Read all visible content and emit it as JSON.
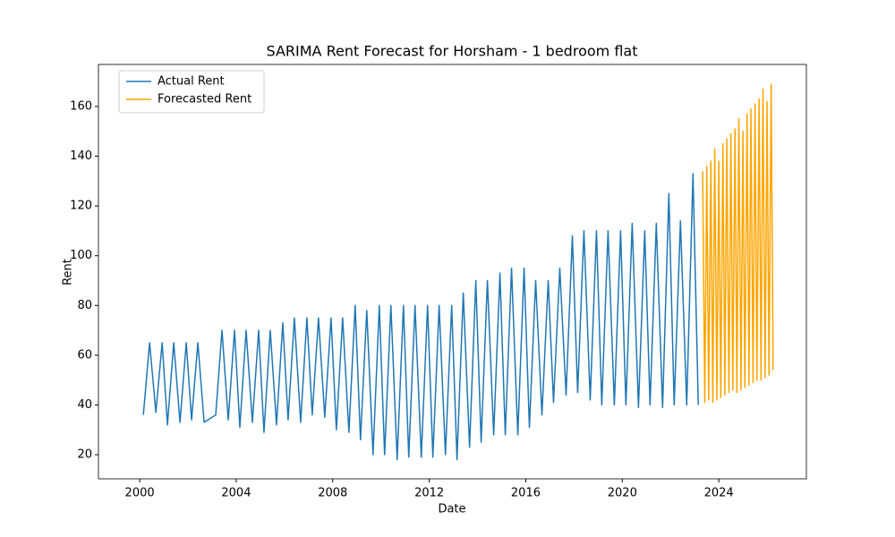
{
  "chart_data": {
    "type": "line",
    "title": "SARIMA Rent Forecast for Horsham - 1 bedroom flat",
    "x_label": "Date",
    "y_label": "Rent",
    "xlim": [
      1998.29,
      2027.63
    ],
    "xticks": [
      2000,
      2004,
      2008,
      2012,
      2016,
      2020,
      2024
    ],
    "ylim": [
      10.3,
      176.9
    ],
    "yticks": [
      20,
      40,
      60,
      80,
      100,
      120,
      140,
      160
    ],
    "legend": "upper left",
    "series": [
      {
        "name": "Actual Rent",
        "color": "#1f77b4",
        "x": [
          2000.15,
          2000.41,
          2000.67,
          2000.93,
          2001.15,
          2001.41,
          2001.67,
          2001.93,
          2002.15,
          2002.41,
          2002.67,
          2003.15,
          2003.41,
          2003.67,
          2003.93,
          2004.15,
          2004.41,
          2004.67,
          2004.93,
          2005.15,
          2005.41,
          2005.67,
          2005.93,
          2006.15,
          2006.41,
          2006.67,
          2006.93,
          2007.15,
          2007.41,
          2007.67,
          2007.93,
          2008.15,
          2008.41,
          2008.67,
          2008.93,
          2009.15,
          2009.41,
          2009.67,
          2009.93,
          2010.15,
          2010.41,
          2010.67,
          2010.93,
          2011.15,
          2011.41,
          2011.67,
          2011.93,
          2012.15,
          2012.41,
          2012.67,
          2012.93,
          2013.15,
          2013.41,
          2013.67,
          2013.93,
          2014.15,
          2014.41,
          2014.67,
          2014.93,
          2015.15,
          2015.41,
          2015.67,
          2015.93,
          2016.15,
          2016.41,
          2016.67,
          2016.93,
          2017.15,
          2017.41,
          2017.67,
          2017.93,
          2018.15,
          2018.41,
          2018.67,
          2018.93,
          2019.15,
          2019.41,
          2019.67,
          2019.93,
          2020.15,
          2020.41,
          2020.67,
          2020.93,
          2021.15,
          2021.41,
          2021.67,
          2021.93,
          2022.15,
          2022.41,
          2022.67,
          2022.93,
          2023.15
        ],
        "values": [
          36,
          65,
          37,
          65,
          32,
          65,
          33,
          65,
          34,
          65,
          33,
          36,
          70,
          34,
          70,
          31,
          70,
          33,
          70,
          29,
          70,
          32,
          73,
          34,
          75,
          33,
          75,
          36,
          75,
          35,
          75,
          30,
          75,
          29,
          80,
          26,
          78,
          20,
          80,
          20,
          80,
          18,
          80,
          19,
          80,
          19,
          80,
          19,
          80,
          20,
          80,
          18,
          85,
          23,
          90,
          25,
          90,
          28,
          93,
          28,
          95,
          28,
          95,
          31,
          90,
          36,
          90,
          41,
          95,
          44,
          108,
          45,
          110,
          42,
          110,
          40,
          110,
          40,
          110,
          40,
          113,
          39,
          110,
          40,
          113,
          39,
          125,
          40,
          114,
          40,
          133,
          40
        ]
      },
      {
        "name": "Forecasted Rent",
        "color": "#ffa500",
        "x": [
          2023.33,
          2023.42,
          2023.5,
          2023.58,
          2023.67,
          2023.75,
          2023.83,
          2023.92,
          2024.0,
          2024.08,
          2024.17,
          2024.25,
          2024.33,
          2024.42,
          2024.5,
          2024.58,
          2024.67,
          2024.75,
          2024.83,
          2024.92,
          2025.0,
          2025.08,
          2025.17,
          2025.25,
          2025.33,
          2025.42,
          2025.5,
          2025.58,
          2025.67,
          2025.75,
          2025.83,
          2025.92,
          2026.0,
          2026.08,
          2026.17,
          2026.25
        ],
        "values": [
          134,
          41,
          136,
          42,
          138,
          41,
          143,
          42,
          138,
          43,
          145,
          44,
          147,
          45,
          149,
          46,
          151,
          45,
          155,
          46,
          150,
          47,
          157,
          48,
          159,
          49,
          161,
          50,
          163,
          50,
          167,
          51,
          162,
          52,
          169,
          54
        ]
      }
    ]
  }
}
